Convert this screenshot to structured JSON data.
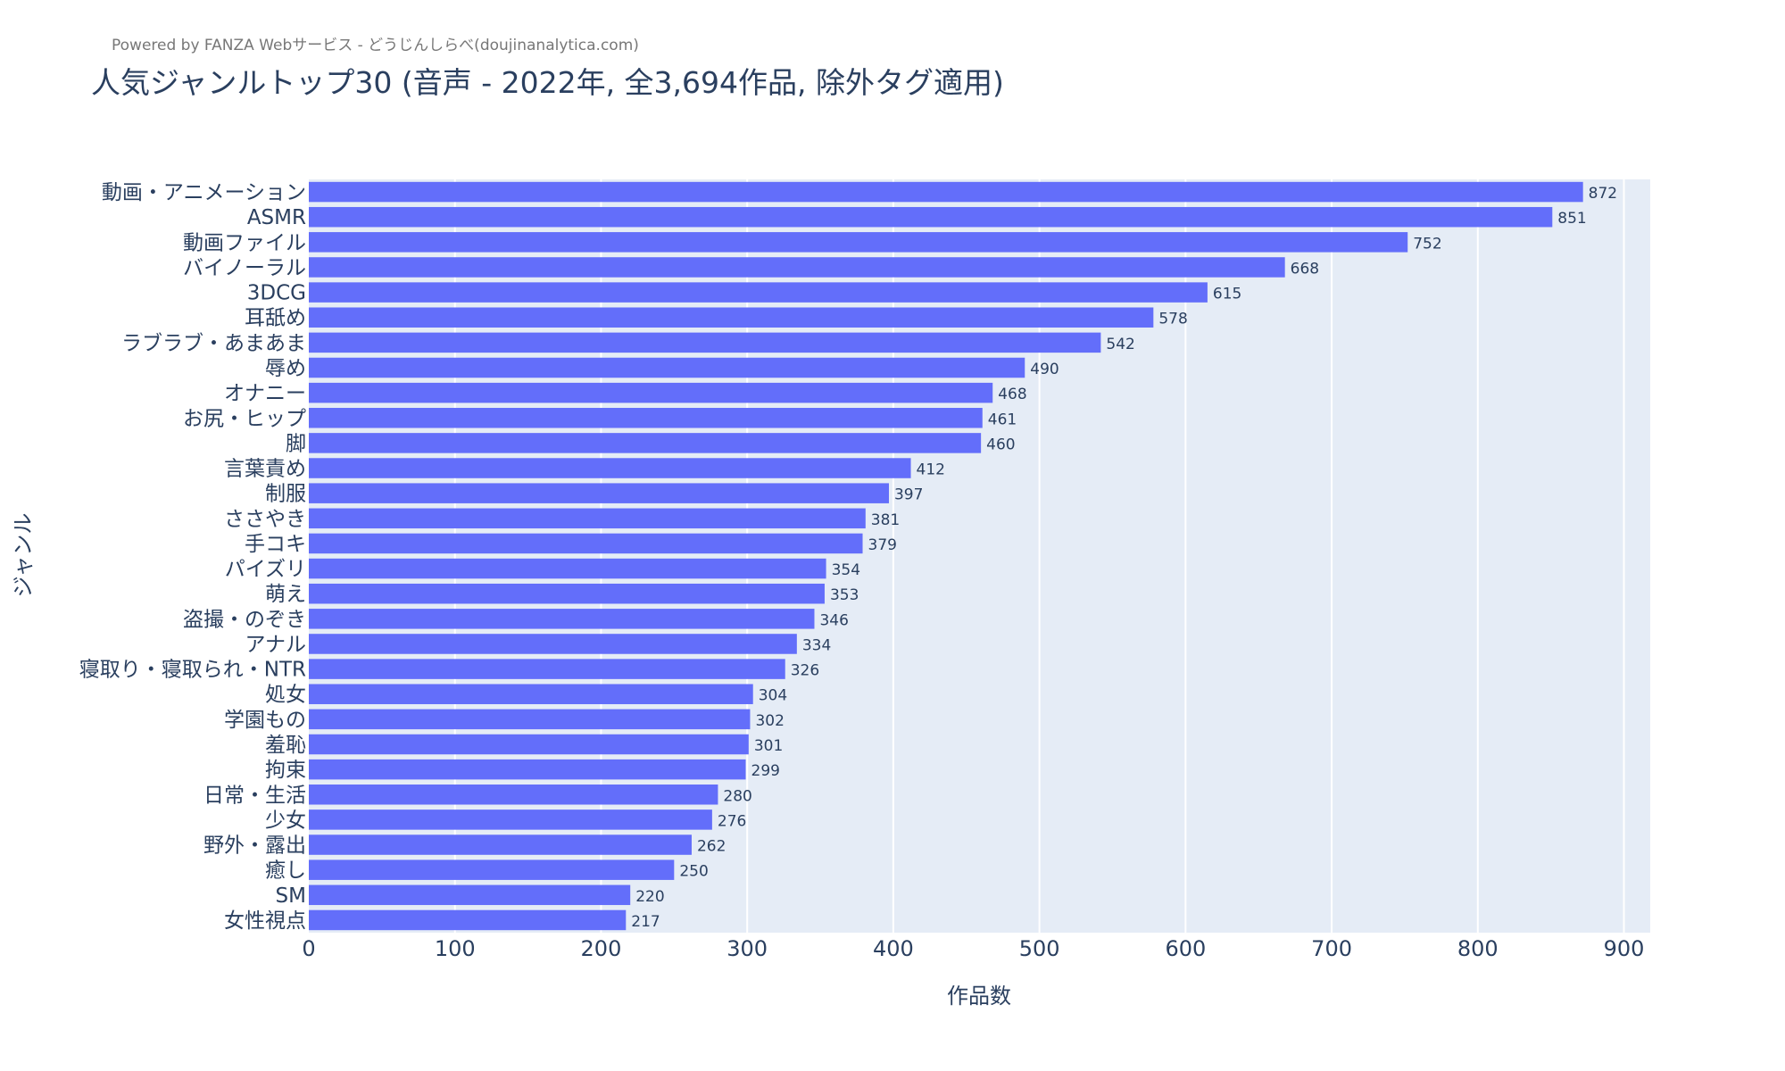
{
  "powered_by": "Powered by FANZA Webサービス - どうじんしらべ(doujinanalytica.com)",
  "chart_data": {
    "type": "bar",
    "orientation": "horizontal",
    "title": "人気ジャンルトップ30 (音声 - 2022年, 全3,694作品, 除外タグ適用)",
    "xlabel": "作品数",
    "ylabel": "ジャンル",
    "xlim": [
      0,
      918
    ],
    "xticks": [
      0,
      100,
      200,
      300,
      400,
      500,
      600,
      700,
      800,
      900
    ],
    "grid": true,
    "bar_color": "#636efa",
    "plot_bg": "#e5ecf6",
    "categories": [
      "動画・アニメーション",
      "ASMR",
      "動画ファイル",
      "バイノーラル",
      "3DCG",
      "耳舐め",
      "ラブラブ・あまあま",
      "辱め",
      "オナニー",
      "お尻・ヒップ",
      "脚",
      "言葉責め",
      "制服",
      "ささやき",
      "手コキ",
      "パイズリ",
      "萌え",
      "盗撮・のぞき",
      "アナル",
      "寝取り・寝取られ・NTR",
      "処女",
      "学園もの",
      "羞恥",
      "拘束",
      "日常・生活",
      "少女",
      "野外・露出",
      "癒し",
      "SM",
      "女性視点"
    ],
    "values": [
      872,
      851,
      752,
      668,
      615,
      578,
      542,
      490,
      468,
      461,
      460,
      412,
      397,
      381,
      379,
      354,
      353,
      346,
      334,
      326,
      304,
      302,
      301,
      299,
      280,
      276,
      262,
      250,
      220,
      217
    ]
  }
}
